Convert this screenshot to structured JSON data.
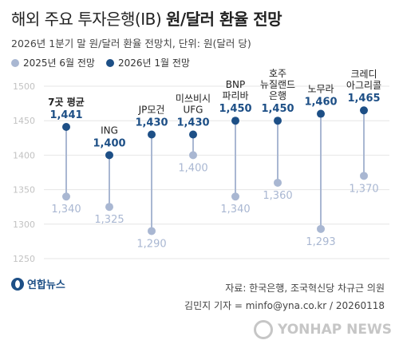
{
  "header": {
    "title_prefix": "해외 주요 투자은행(IB) ",
    "title_bold": "원/달러 환율 전망",
    "subtitle": "2026년 1분기 말 원/달러 환율 전망치, 단위: 원(달러 당)"
  },
  "colors": {
    "jun2025": "#a9b7d2",
    "jan2026": "#1d4f86",
    "connector": "#a9b7d2",
    "grid": "#e6e6e6",
    "tick": "#c2c2c2"
  },
  "chart_data": {
    "type": "dot",
    "ylim": [
      1250,
      1500
    ],
    "yticks": [
      1250,
      1300,
      1350,
      1400,
      1450,
      1500
    ],
    "grid": true,
    "legend_position": "top-left",
    "categories": [
      [
        "7곳 평균"
      ],
      [
        "ING"
      ],
      [
        "JP모건"
      ],
      [
        "미쓰비시",
        "UFG"
      ],
      [
        "BNP",
        "파리바"
      ],
      [
        "호주",
        "뉴질랜드",
        "은행"
      ],
      [
        "노무라"
      ],
      [
        "크레디",
        "아그리콜"
      ]
    ],
    "series": [
      {
        "name": "2025년 6월 전망",
        "values": [
          1340,
          1325,
          1290,
          1400,
          1340,
          1360,
          1293,
          1370
        ]
      },
      {
        "name": "2026년 1월 전망",
        "values": [
          1441,
          1400,
          1430,
          1430,
          1450,
          1450,
          1460,
          1465
        ]
      }
    ],
    "value_labels": {
      "jun2025": [
        "1,340",
        "1,325",
        "1,290",
        "1,400",
        "1,340",
        "1,360",
        "1,293",
        "1,370"
      ],
      "jan2026": [
        "1,441",
        "1,400",
        "1,430",
        "1,430",
        "1,450",
        "1,450",
        "1,460",
        "1,465"
      ]
    }
  },
  "footer": {
    "logo_text": "연합뉴스",
    "source": "자료: 한국은행, 조국혁신당 차규근 의원",
    "byline": "김민지 기자 = minfo@yna.co.kr / 20260118",
    "watermark": "YONHAP NEWS"
  }
}
